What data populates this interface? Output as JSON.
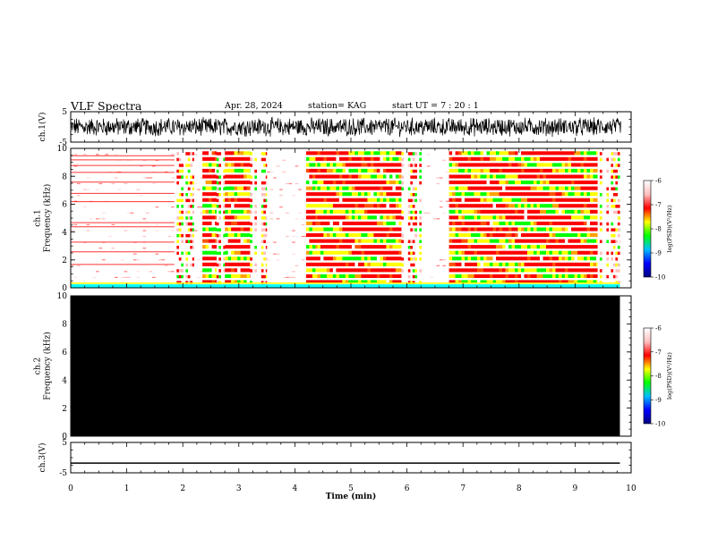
{
  "header": {
    "title": "VLF Spectra",
    "date": "Apr. 28, 2024",
    "station": "station= KAG",
    "start": "start  UT  =   7 : 20 : 1"
  },
  "chart_data": [
    {
      "type": "line",
      "panel": "ch1-waveform",
      "ylabel": "ch.1(V)",
      "ylim": [
        -5,
        5
      ],
      "y_ticks": [
        "5",
        "-5"
      ],
      "xlim": [
        0,
        10
      ],
      "trace": "noisy black waveform, amplitude about ±2.5 V, from 0 to ~9.8 min",
      "color": "#000000"
    },
    {
      "type": "heatmap",
      "panel": "ch1-spectrogram",
      "ylabel": "ch.1\nFrequency (kHz)",
      "ylim": [
        0,
        10
      ],
      "y_ticks": [
        "0",
        "2",
        "4",
        "6",
        "8",
        "10"
      ],
      "xlim": [
        0,
        10
      ],
      "data_end_min": 9.8,
      "colorbar": {
        "label": "log(PSD)(V²/Hz)",
        "range": [
          -10,
          -6
        ],
        "ticks": [
          "-6",
          "-7",
          "-8",
          "-9",
          "-10"
        ],
        "colors": [
          "#000080",
          "#0000ff",
          "#00bfff",
          "#00ff00",
          "#ffff00",
          "#ff0000",
          "#ffc0c0",
          "#ffffff"
        ]
      },
      "segments": [
        {
          "from": 0.0,
          "to": 1.85,
          "style": "sparse"
        },
        {
          "from": 1.85,
          "to": 2.2,
          "style": "striped"
        },
        {
          "from": 2.2,
          "to": 2.35,
          "style": "sparse"
        },
        {
          "from": 2.35,
          "to": 2.6,
          "style": "dense"
        },
        {
          "from": 2.6,
          "to": 2.75,
          "style": "striped"
        },
        {
          "from": 2.75,
          "to": 3.2,
          "style": "dense"
        },
        {
          "from": 3.2,
          "to": 3.5,
          "style": "striped"
        },
        {
          "from": 3.5,
          "to": 4.2,
          "style": "sparse"
        },
        {
          "from": 4.2,
          "to": 4.4,
          "style": "dense"
        },
        {
          "from": 4.4,
          "to": 5.9,
          "style": "dense"
        },
        {
          "from": 5.9,
          "to": 6.3,
          "style": "striped"
        },
        {
          "from": 6.3,
          "to": 6.75,
          "style": "sparse"
        },
        {
          "from": 6.75,
          "to": 9.4,
          "style": "dense"
        },
        {
          "from": 9.4,
          "to": 9.8,
          "style": "striped"
        }
      ]
    },
    {
      "type": "heatmap",
      "panel": "ch2-spectrogram",
      "ylabel": "ch.2\nFrequency (kHz)",
      "ylim": [
        0,
        10
      ],
      "y_ticks": [
        "0",
        "2",
        "4",
        "6",
        "8",
        "10"
      ],
      "xlim": [
        0,
        10
      ],
      "data_end_min": 9.8,
      "fill": "#000000",
      "colorbar": {
        "label": "log(PSD)(V²/Hz)",
        "range": [
          -10,
          -6
        ],
        "ticks": [
          "-6",
          "-7",
          "-8",
          "-9",
          "-10"
        ]
      }
    },
    {
      "type": "line",
      "panel": "ch3-waveform",
      "ylabel": "ch.3(V)",
      "ylim": [
        -5,
        5
      ],
      "y_ticks": [
        "5",
        "-5"
      ],
      "xlim": [
        0,
        10
      ],
      "x": [
        0,
        9.8
      ],
      "y": [
        -1.8,
        -1.8
      ],
      "xlabel": "Time  (min)",
      "x_ticks": [
        "0",
        "1",
        "2",
        "3",
        "4",
        "5",
        "6",
        "7",
        "8",
        "9",
        "10"
      ],
      "color": "#000000"
    }
  ]
}
